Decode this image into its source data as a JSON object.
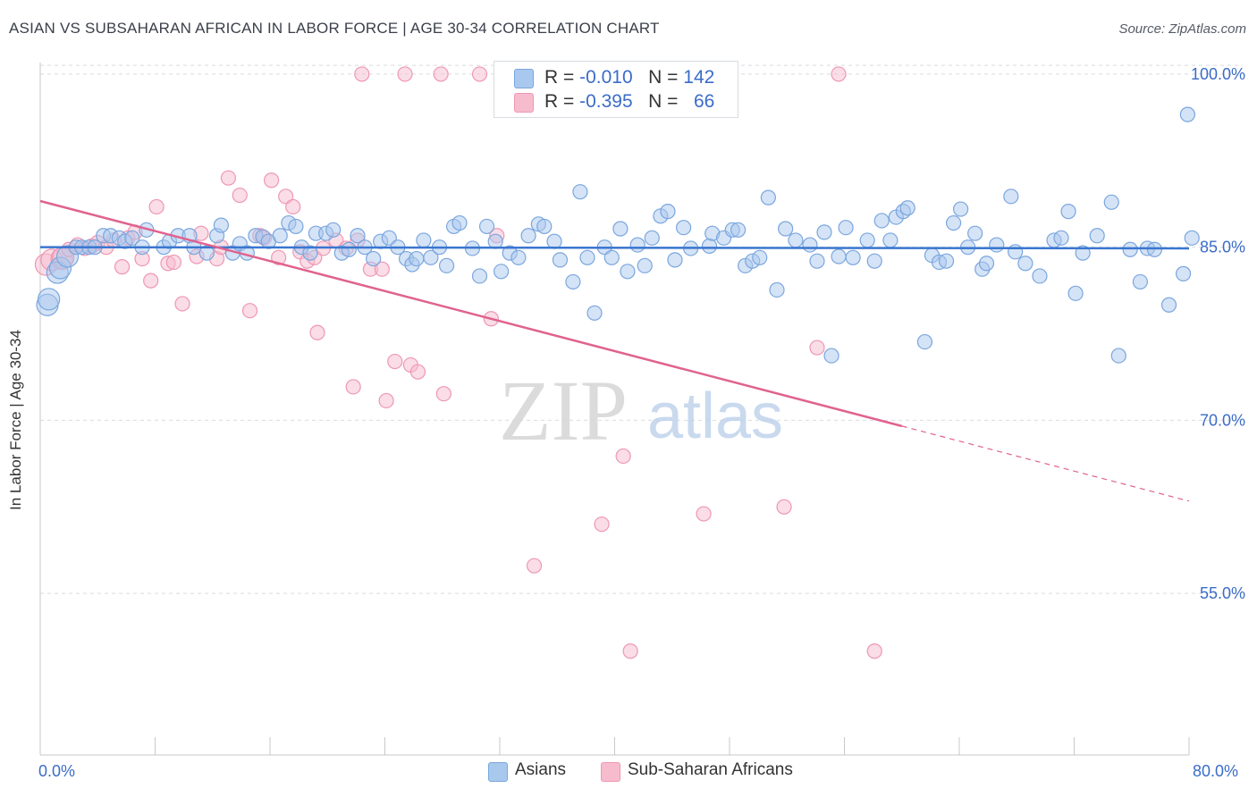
{
  "header": {
    "title": "ASIAN VS SUBSAHARAN AFRICAN IN LABOR FORCE | AGE 30-34 CORRELATION CHART",
    "source": "Source: ZipAtlas.com"
  },
  "watermark": {
    "part1": "ZIP",
    "part2": "atlas"
  },
  "colors": {
    "asian_fill": "#a9c8ee",
    "asian_stroke": "#7aa6de",
    "asian_line": "#3a76cf",
    "african_fill": "#f6bccd",
    "african_stroke": "#ee97b3",
    "african_line": "#e0628f",
    "tick_label": "#3a6cc8",
    "grid": "#d9dbe0"
  },
  "legend": {
    "rows": [
      {
        "r_label": "R = ",
        "r_value": "-0.010",
        "n_label": "N = ",
        "n_value": "142"
      },
      {
        "r_label": "R = ",
        "r_value": "-0.395",
        "n_label": "N = ",
        "n_value": "66"
      }
    ],
    "bottom": [
      "Asians",
      "Sub-Saharan Africans"
    ]
  },
  "chart_data": {
    "type": "scatter",
    "title": "ASIAN VS SUBSAHARAN AFRICAN IN LABOR FORCE | AGE 30-34 CORRELATION CHART",
    "xlabel": "",
    "ylabel": "In Labor Force | Age 30-34",
    "xlim": [
      0,
      80
    ],
    "ylim": [
      41,
      101
    ],
    "x_tick_labels": [
      "0.0%",
      "80.0%"
    ],
    "y_ticks": [
      55,
      70,
      85,
      100
    ],
    "y_tick_labels": [
      "55.0%",
      "70.0%",
      "85.0%",
      "100.0%"
    ],
    "grid": "horizontal dashed",
    "legend_position": "top-center",
    "series": [
      {
        "name": "Asians",
        "r": -0.01,
        "n": 142,
        "trend": {
          "x0": 0,
          "y0": 85.0,
          "x1": 80,
          "y1": 84.9
        },
        "points": [
          [
            0.5,
            80
          ],
          [
            0.6,
            80.5
          ],
          [
            1.2,
            82.8
          ],
          [
            1.4,
            83.2
          ],
          [
            1.9,
            84.2
          ],
          [
            2.5,
            85
          ],
          [
            2.9,
            85
          ],
          [
            3.4,
            85
          ],
          [
            3.8,
            85
          ],
          [
            4.4,
            86
          ],
          [
            4.9,
            86
          ],
          [
            5.5,
            85.8
          ],
          [
            5.9,
            85.5
          ],
          [
            6.4,
            85.8
          ],
          [
            7.1,
            85
          ],
          [
            7.4,
            86.5
          ],
          [
            8.6,
            85
          ],
          [
            9.0,
            85.5
          ],
          [
            9.6,
            86
          ],
          [
            10.4,
            86
          ],
          [
            10.7,
            85
          ],
          [
            11.6,
            84.5
          ],
          [
            12.3,
            86
          ],
          [
            12.6,
            86.9
          ],
          [
            13.4,
            84.5
          ],
          [
            13.9,
            85.3
          ],
          [
            14.4,
            84.5
          ],
          [
            15.0,
            86
          ],
          [
            15.5,
            85.9
          ],
          [
            15.9,
            85.5
          ],
          [
            16.7,
            86
          ],
          [
            17.3,
            87.1
          ],
          [
            17.8,
            86.8
          ],
          [
            18.2,
            85
          ],
          [
            18.8,
            84.5
          ],
          [
            19.2,
            86.2
          ],
          [
            19.9,
            86.2
          ],
          [
            20.4,
            86.5
          ],
          [
            21.0,
            84.5
          ],
          [
            21.5,
            84.8
          ],
          [
            22.1,
            86
          ],
          [
            22.6,
            85
          ],
          [
            23.2,
            84
          ],
          [
            23.7,
            85.5
          ],
          [
            24.3,
            85.8
          ],
          [
            24.9,
            85
          ],
          [
            25.5,
            84
          ],
          [
            25.9,
            83.5
          ],
          [
            26.2,
            84
          ],
          [
            26.7,
            85.6
          ],
          [
            27.2,
            84.1
          ],
          [
            27.8,
            85
          ],
          [
            28.3,
            83.4
          ],
          [
            28.8,
            86.8
          ],
          [
            29.2,
            87.1
          ],
          [
            30.1,
            84.9
          ],
          [
            30.6,
            82.5
          ],
          [
            31.1,
            86.8
          ],
          [
            31.7,
            85.5
          ],
          [
            32.1,
            82.9
          ],
          [
            32.7,
            84.5
          ],
          [
            33.3,
            84.1
          ],
          [
            34.0,
            86
          ],
          [
            34.7,
            87
          ],
          [
            35.1,
            86.8
          ],
          [
            35.8,
            85.5
          ],
          [
            36.2,
            83.9
          ],
          [
            37.1,
            82
          ],
          [
            37.6,
            89.8
          ],
          [
            38.1,
            84.1
          ],
          [
            38.6,
            79.3
          ],
          [
            39.3,
            85
          ],
          [
            39.8,
            84.1
          ],
          [
            40.4,
            86.6
          ],
          [
            40.9,
            82.9
          ],
          [
            41.6,
            85.2
          ],
          [
            42.1,
            83.4
          ],
          [
            42.6,
            85.8
          ],
          [
            43.2,
            87.7
          ],
          [
            43.7,
            88.1
          ],
          [
            44.2,
            83.9
          ],
          [
            44.8,
            86.7
          ],
          [
            45.3,
            84.9
          ],
          [
            46.6,
            85.1
          ],
          [
            46.8,
            86.2
          ],
          [
            47.6,
            85.8
          ],
          [
            48.2,
            86.5
          ],
          [
            48.6,
            86.5
          ],
          [
            49.1,
            83.4
          ],
          [
            49.6,
            83.8
          ],
          [
            50.1,
            84.1
          ],
          [
            50.7,
            89.3
          ],
          [
            51.3,
            81.3
          ],
          [
            51.9,
            86.6
          ],
          [
            52.6,
            85.6
          ],
          [
            53.6,
            85.2
          ],
          [
            54.1,
            83.8
          ],
          [
            54.6,
            86.3
          ],
          [
            55.1,
            75.6
          ],
          [
            55.6,
            84.2
          ],
          [
            56.1,
            86.7
          ],
          [
            56.6,
            84.1
          ],
          [
            57.6,
            85.6
          ],
          [
            58.1,
            83.8
          ],
          [
            58.6,
            87.3
          ],
          [
            59.2,
            85.6
          ],
          [
            59.6,
            87.6
          ],
          [
            60.1,
            88.1
          ],
          [
            60.4,
            88.4
          ],
          [
            61.6,
            76.8
          ],
          [
            62.1,
            84.3
          ],
          [
            62.6,
            83.7
          ],
          [
            63.1,
            83.8
          ],
          [
            63.6,
            87.1
          ],
          [
            64.1,
            88.3
          ],
          [
            64.6,
            85
          ],
          [
            65.1,
            86.2
          ],
          [
            65.6,
            83.1
          ],
          [
            65.9,
            83.6
          ],
          [
            66.6,
            85.2
          ],
          [
            67.6,
            89.4
          ],
          [
            67.9,
            84.6
          ],
          [
            68.6,
            83.6
          ],
          [
            69.6,
            82.5
          ],
          [
            70.6,
            85.6
          ],
          [
            71.1,
            85.8
          ],
          [
            71.6,
            88.1
          ],
          [
            72.1,
            81
          ],
          [
            72.6,
            84.5
          ],
          [
            73.6,
            86
          ],
          [
            74.6,
            88.9
          ],
          [
            75.1,
            75.6
          ],
          [
            75.9,
            84.8
          ],
          [
            76.6,
            82
          ],
          [
            77.1,
            84.9
          ],
          [
            77.6,
            84.8
          ],
          [
            78.6,
            80
          ],
          [
            79.6,
            82.7
          ],
          [
            80.2,
            85.8
          ],
          [
            79.9,
            96.5
          ]
        ]
      },
      {
        "name": "Sub-Saharan Africans",
        "r": -0.395,
        "n": 66,
        "trend": {
          "x0": 0,
          "y0": 89,
          "x1": 60,
          "y1": 69.5,
          "x_dash_end": 80,
          "y_dash_end": 63.0
        },
        "points": [
          [
            0.4,
            83.5
          ],
          [
            0.8,
            83.9
          ],
          [
            1.5,
            84
          ],
          [
            1.6,
            84.1
          ],
          [
            2.0,
            84.8
          ],
          [
            2.6,
            85.2
          ],
          [
            3.1,
            84.9
          ],
          [
            3.6,
            85.1
          ],
          [
            4.0,
            85.4
          ],
          [
            4.6,
            85
          ],
          [
            5.1,
            85.6
          ],
          [
            5.7,
            83.3
          ],
          [
            6.1,
            85.8
          ],
          [
            6.6,
            86.3
          ],
          [
            7.1,
            84
          ],
          [
            7.7,
            82.1
          ],
          [
            8.1,
            88.5
          ],
          [
            8.9,
            83.6
          ],
          [
            9.3,
            83.7
          ],
          [
            9.9,
            80.1
          ],
          [
            10.9,
            84.2
          ],
          [
            11.2,
            86.2
          ],
          [
            12.3,
            84
          ],
          [
            12.6,
            85
          ],
          [
            13.1,
            91
          ],
          [
            13.9,
            89.5
          ],
          [
            14.6,
            79.5
          ],
          [
            15.3,
            86
          ],
          [
            15.6,
            85.8
          ],
          [
            16.1,
            90.8
          ],
          [
            16.6,
            84.1
          ],
          [
            17.1,
            89.4
          ],
          [
            17.6,
            88.5
          ],
          [
            18.1,
            84.6
          ],
          [
            18.6,
            83.8
          ],
          [
            19.1,
            84.1
          ],
          [
            19.3,
            77.6
          ],
          [
            19.7,
            84.9
          ],
          [
            20.6,
            85.6
          ],
          [
            21.3,
            84.9
          ],
          [
            21.8,
            72.9
          ],
          [
            22.1,
            85.6
          ],
          [
            22.4,
            100
          ],
          [
            23.0,
            83.1
          ],
          [
            23.8,
            83.1
          ],
          [
            24.1,
            71.7
          ],
          [
            24.7,
            75.1
          ],
          [
            25.4,
            100
          ],
          [
            25.8,
            74.8
          ],
          [
            26.3,
            74.2
          ],
          [
            27.9,
            100
          ],
          [
            28.1,
            72.3
          ],
          [
            30.6,
            100
          ],
          [
            31.4,
            78.8
          ],
          [
            31.8,
            86
          ],
          [
            34.4,
            57.4
          ],
          [
            37.6,
            100
          ],
          [
            39.1,
            61
          ],
          [
            40.6,
            66.9
          ],
          [
            41.1,
            50
          ],
          [
            43.6,
            100
          ],
          [
            46.2,
            61.9
          ],
          [
            51.8,
            62.5
          ],
          [
            54.1,
            76.3
          ],
          [
            55.6,
            100
          ],
          [
            58.1,
            50
          ]
        ]
      }
    ]
  }
}
